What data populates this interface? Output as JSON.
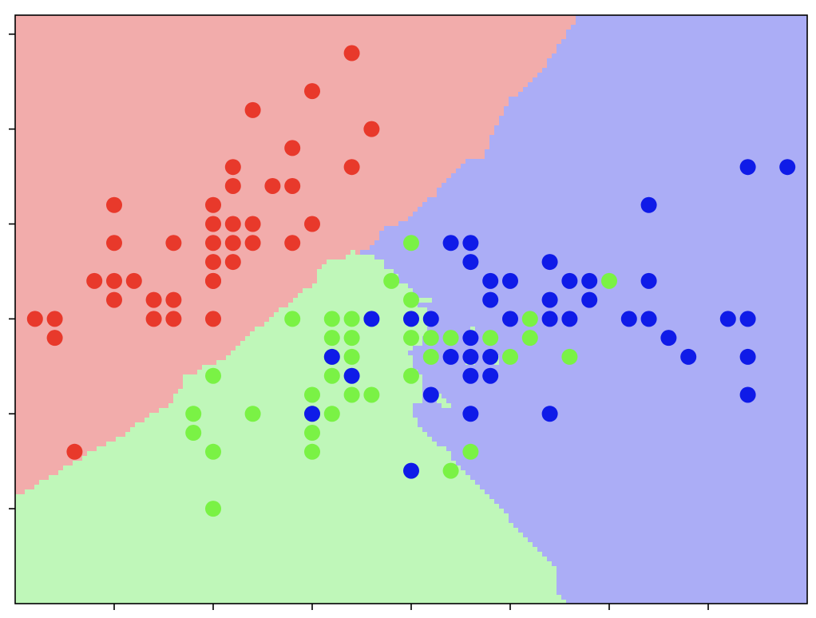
{
  "chart_data": {
    "type": "scatter",
    "title": "",
    "xlabel": "",
    "ylabel": "",
    "xlim": [
      4.0,
      8.0
    ],
    "ylim": [
      1.5,
      4.6
    ],
    "grid": false,
    "legend": "none",
    "x_ticks": [
      4.5,
      5.0,
      5.5,
      6.0,
      6.5,
      7.0,
      7.5
    ],
    "y_ticks": [
      2.0,
      2.5,
      3.0,
      3.5,
      4.0,
      4.5
    ],
    "x_tick_labels_visible": false,
    "y_tick_labels_visible": false,
    "regions": [
      {
        "class": "red",
        "color": "#f2acab"
      },
      {
        "class": "green",
        "color": "#bff7b9"
      },
      {
        "class": "blue",
        "color": "#abadf6"
      }
    ],
    "series": [
      {
        "class": "red",
        "color": "#e8392b",
        "points": [
          [
            5.7,
            4.4
          ],
          [
            5.5,
            4.2
          ],
          [
            5.2,
            4.1
          ],
          [
            5.8,
            4.0
          ],
          [
            5.4,
            3.9
          ],
          [
            5.7,
            3.8
          ],
          [
            5.1,
            3.8
          ],
          [
            5.1,
            3.7
          ],
          [
            5.3,
            3.7
          ],
          [
            5.4,
            3.7
          ],
          [
            4.5,
            3.6
          ],
          [
            5.0,
            3.6
          ],
          [
            5.5,
            3.5
          ],
          [
            5.0,
            3.5
          ],
          [
            5.1,
            3.5
          ],
          [
            5.2,
            3.5
          ],
          [
            4.5,
            3.4
          ],
          [
            4.8,
            3.4
          ],
          [
            5.0,
            3.4
          ],
          [
            5.1,
            3.4
          ],
          [
            5.2,
            3.4
          ],
          [
            5.4,
            3.4
          ],
          [
            5.0,
            3.3
          ],
          [
            5.1,
            3.3
          ],
          [
            5.0,
            3.2
          ],
          [
            4.4,
            3.2
          ],
          [
            4.5,
            3.2
          ],
          [
            4.6,
            3.2
          ],
          [
            5.0,
            3.2
          ],
          [
            4.5,
            3.1
          ],
          [
            4.7,
            3.1
          ],
          [
            4.8,
            3.1
          ],
          [
            4.1,
            3.0
          ],
          [
            4.2,
            3.0
          ],
          [
            4.7,
            3.0
          ],
          [
            4.8,
            3.0
          ],
          [
            5.0,
            3.0
          ],
          [
            4.2,
            2.9
          ],
          [
            4.3,
            2.3
          ]
        ]
      },
      {
        "class": "green",
        "color": "#7af245",
        "points": [
          [
            6.0,
            3.4
          ],
          [
            5.9,
            3.2
          ],
          [
            6.0,
            3.1
          ],
          [
            7.0,
            3.2
          ],
          [
            5.4,
            3.0
          ],
          [
            5.6,
            3.0
          ],
          [
            5.7,
            3.0
          ],
          [
            6.6,
            3.0
          ],
          [
            5.6,
            2.9
          ],
          [
            5.7,
            2.9
          ],
          [
            6.0,
            2.9
          ],
          [
            6.1,
            2.9
          ],
          [
            6.2,
            2.9
          ],
          [
            6.4,
            2.9
          ],
          [
            6.6,
            2.9
          ],
          [
            5.6,
            2.8
          ],
          [
            5.7,
            2.8
          ],
          [
            6.1,
            2.8
          ],
          [
            6.5,
            2.8
          ],
          [
            6.8,
            2.8
          ],
          [
            5.0,
            2.7
          ],
          [
            5.6,
            2.7
          ],
          [
            6.0,
            2.7
          ],
          [
            5.5,
            2.6
          ],
          [
            5.7,
            2.6
          ],
          [
            5.8,
            2.6
          ],
          [
            4.9,
            2.5
          ],
          [
            5.2,
            2.5
          ],
          [
            5.5,
            2.5
          ],
          [
            5.6,
            2.5
          ],
          [
            4.9,
            2.4
          ],
          [
            5.5,
            2.4
          ],
          [
            5.0,
            2.3
          ],
          [
            5.5,
            2.3
          ],
          [
            6.3,
            2.3
          ],
          [
            6.2,
            2.2
          ],
          [
            5.0,
            2.0
          ]
        ]
      },
      {
        "class": "blue",
        "color": "#0f1be8",
        "points": [
          [
            7.7,
            3.8
          ],
          [
            7.9,
            3.8
          ],
          [
            7.2,
            3.6
          ],
          [
            6.2,
            3.4
          ],
          [
            6.3,
            3.4
          ],
          [
            6.3,
            3.3
          ],
          [
            6.7,
            3.3
          ],
          [
            6.4,
            3.2
          ],
          [
            6.5,
            3.2
          ],
          [
            6.8,
            3.2
          ],
          [
            6.9,
            3.2
          ],
          [
            7.2,
            3.2
          ],
          [
            6.4,
            3.1
          ],
          [
            6.7,
            3.1
          ],
          [
            6.9,
            3.1
          ],
          [
            5.8,
            3.0
          ],
          [
            6.0,
            3.0
          ],
          [
            6.1,
            3.0
          ],
          [
            6.5,
            3.0
          ],
          [
            6.7,
            3.0
          ],
          [
            6.8,
            3.0
          ],
          [
            7.1,
            3.0
          ],
          [
            7.2,
            3.0
          ],
          [
            7.6,
            3.0
          ],
          [
            7.7,
            3.0
          ],
          [
            6.3,
            2.9
          ],
          [
            7.3,
            2.9
          ],
          [
            5.6,
            2.8
          ],
          [
            6.2,
            2.8
          ],
          [
            6.3,
            2.8
          ],
          [
            6.4,
            2.8
          ],
          [
            7.4,
            2.8
          ],
          [
            7.7,
            2.8
          ],
          [
            5.7,
            2.7
          ],
          [
            6.3,
            2.7
          ],
          [
            6.4,
            2.7
          ],
          [
            7.7,
            2.6
          ],
          [
            6.1,
            2.6
          ],
          [
            5.5,
            2.5
          ],
          [
            6.3,
            2.5
          ],
          [
            6.7,
            2.5
          ],
          [
            6.0,
            2.2
          ]
        ]
      }
    ]
  }
}
